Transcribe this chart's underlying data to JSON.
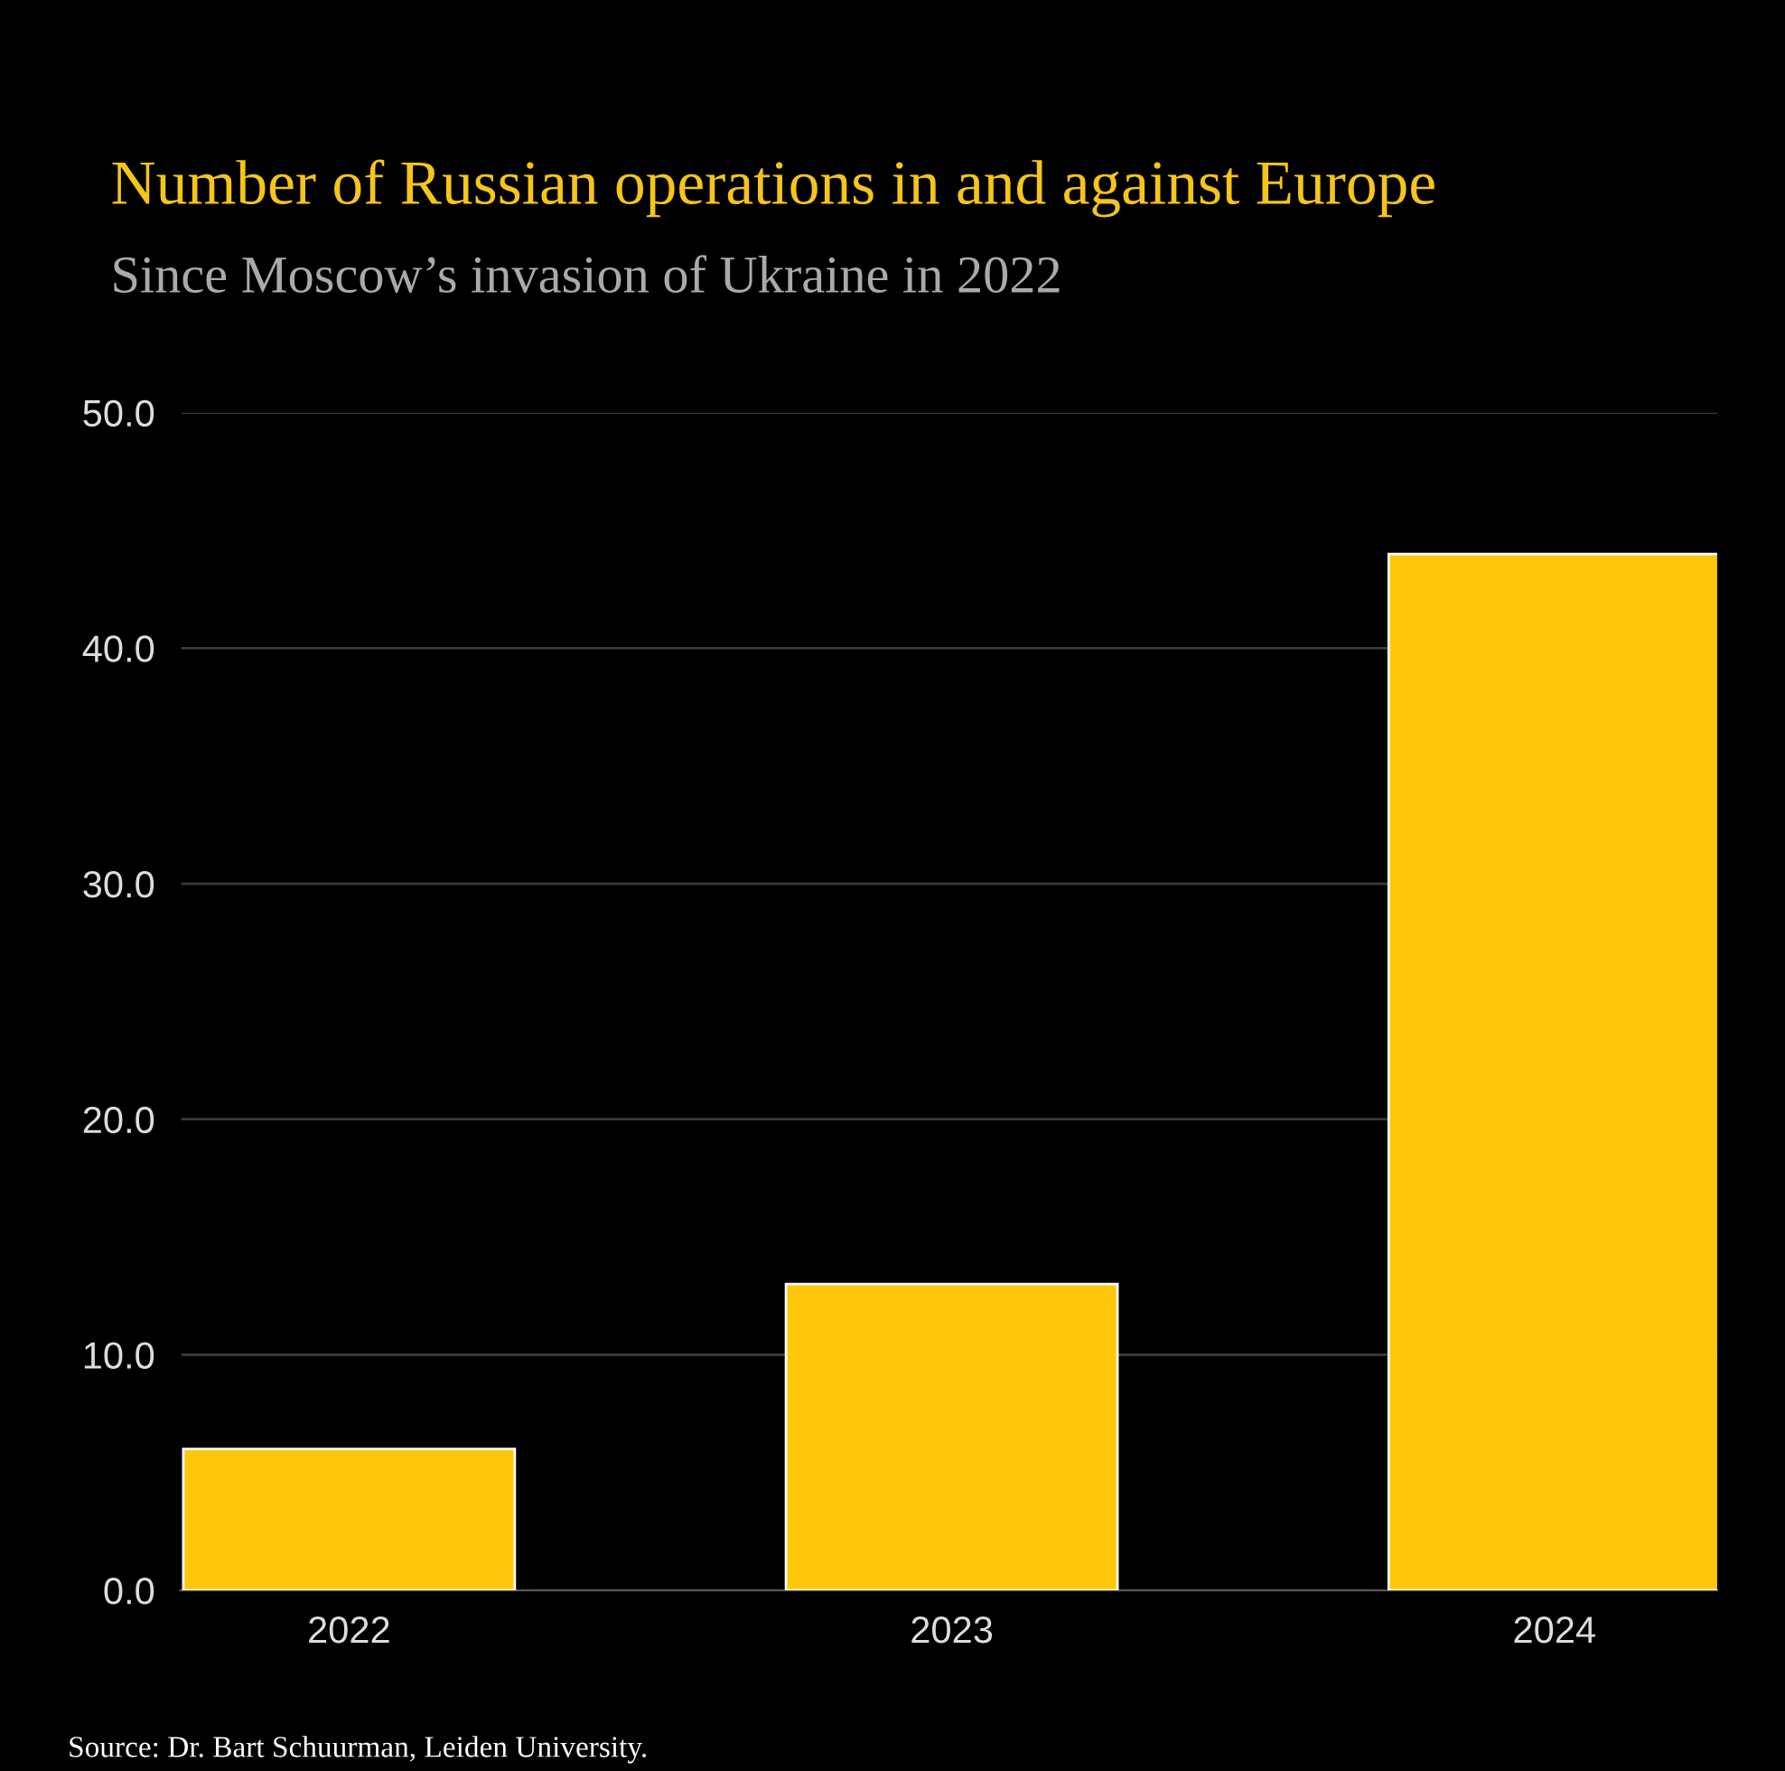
{
  "chart_data": {
    "type": "bar",
    "title": "Number of Russian operations in and against Europe",
    "subtitle": "Since Moscow’s invasion of Ukraine in 2022",
    "categories": [
      "2022",
      "2023",
      "2024"
    ],
    "values": [
      6,
      13,
      44
    ],
    "color": "#ffc60b",
    "ylim": [
      0,
      50
    ],
    "yticks": [
      {
        "value": 0,
        "label": "0.0"
      },
      {
        "value": 10,
        "label": "10.0"
      },
      {
        "value": 20,
        "label": "20.0"
      },
      {
        "value": 30,
        "label": "30.0"
      },
      {
        "value": 40,
        "label": "40.0"
      },
      {
        "value": 50,
        "label": "50.0"
      }
    ],
    "grid": "y",
    "legend": false,
    "annotations": [
      "Source: Dr. Bart Schuurman, Leiden University."
    ]
  }
}
